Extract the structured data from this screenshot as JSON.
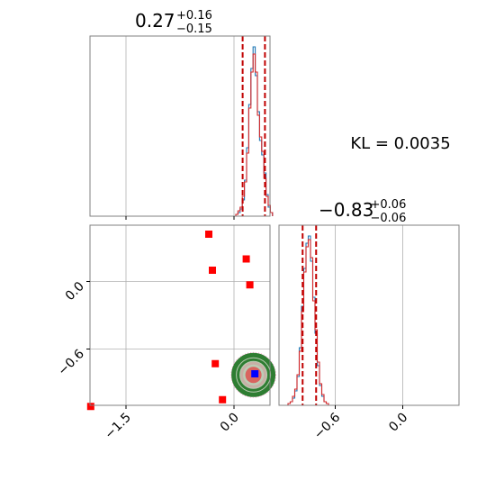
{
  "chart_data": {
    "type": "corner",
    "annotation": "KL = 0.0035",
    "params": [
      {
        "title": {
          "base": "0.27",
          "sup": "+0.16",
          "sub": "−0.15"
        },
        "median": 0.27,
        "lower": 0.12,
        "upper": 0.43,
        "range": [
          -2.0,
          0.5
        ],
        "ticks": [
          -1.5,
          0.0
        ],
        "tick_labels": [
          "−1.5",
          "0.0"
        ]
      },
      {
        "title": {
          "base": "−0.83",
          "sup": "+0.06",
          "sub": "−0.06"
        },
        "median": -0.83,
        "lower": -0.89,
        "upper": -0.77,
        "range": [
          -1.1,
          0.5
        ],
        "ticks": [
          -0.6,
          0.0
        ],
        "tick_labels": [
          "−0.6",
          "0.0"
        ]
      }
    ],
    "marginal_1": {
      "bins": [
        0.04,
        0.07,
        0.1,
        0.13,
        0.16,
        0.19,
        0.22,
        0.25,
        0.28,
        0.31,
        0.34,
        0.37,
        0.4,
        0.43,
        0.46,
        0.49,
        0.52
      ],
      "blue": [
        1,
        2,
        4,
        9,
        20,
        38,
        62,
        82,
        94,
        78,
        58,
        42,
        34,
        24,
        12,
        5,
        2
      ],
      "red": [
        1,
        3,
        5,
        11,
        19,
        35,
        60,
        80,
        90,
        80,
        56,
        44,
        36,
        21,
        11,
        6,
        2
      ]
    },
    "marginal_2": {
      "bins": [
        -1.01,
        -0.99,
        -0.97,
        -0.95,
        -0.93,
        -0.91,
        -0.89,
        -0.87,
        -0.85,
        -0.83,
        -0.81,
        -0.79,
        -0.77,
        -0.75,
        -0.73,
        -0.71,
        -0.69,
        -0.67
      ],
      "blue": [
        1,
        2,
        4,
        8,
        16,
        32,
        55,
        76,
        90,
        94,
        80,
        60,
        40,
        22,
        11,
        5,
        2,
        1
      ],
      "red": [
        1,
        2,
        5,
        9,
        17,
        30,
        52,
        74,
        88,
        92,
        82,
        58,
        42,
        24,
        12,
        6,
        2,
        1
      ]
    },
    "scatter_points": [
      {
        "x": 0.29,
        "y": -0.82,
        "color": "#0000ff",
        "marker": "square"
      },
      {
        "x": -0.35,
        "y": 0.42,
        "color": "#ff0000",
        "marker": "square"
      },
      {
        "x": -0.3,
        "y": 0.1,
        "color": "#ff0000",
        "marker": "square"
      },
      {
        "x": 0.17,
        "y": 0.2,
        "color": "#ff0000",
        "marker": "square"
      },
      {
        "x": 0.22,
        "y": -0.03,
        "color": "#ff0000",
        "marker": "square"
      },
      {
        "x": -0.26,
        "y": -0.73,
        "color": "#ff0000",
        "marker": "square"
      },
      {
        "x": -0.16,
        "y": -1.05,
        "color": "#ff0000",
        "marker": "square"
      },
      {
        "x": -1.99,
        "y": -1.11,
        "color": "#ff0000",
        "marker": "square"
      }
    ],
    "colors": {
      "blue_hist": "#1f77b4",
      "red_hist": "#d62728",
      "quantile_line": "#c00000",
      "contour_outer": "#2e7d32",
      "contour_inner": "#ff69b4",
      "grid": "#b0b0b0",
      "axes": "#808080"
    },
    "grid": true
  }
}
